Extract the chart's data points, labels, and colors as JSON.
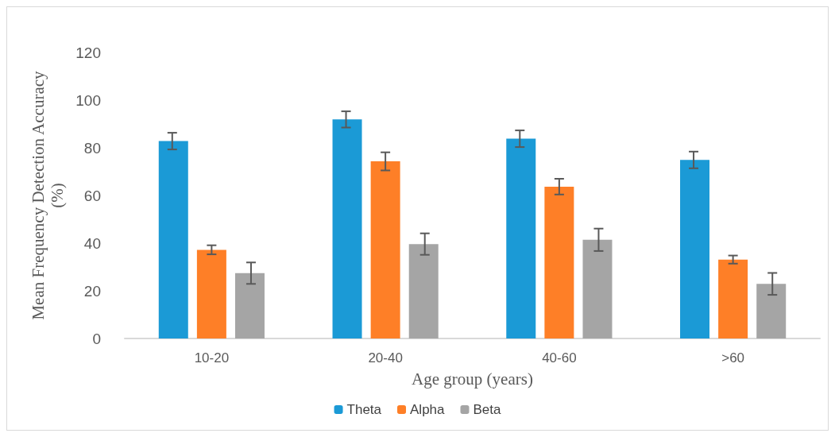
{
  "chart_data": {
    "type": "bar",
    "xlabel": "Age group (years)",
    "ylabel": "Mean Frequency Detection Accuracy\n(%)",
    "categories": [
      "10-20",
      "20-40",
      "40-60",
      ">60"
    ],
    "series": [
      {
        "name": "Theta",
        "color": "#1b9ad6",
        "values": [
          82.8,
          91.9,
          83.8,
          74.9
        ],
        "errors": [
          3.5,
          3.4,
          3.5,
          3.5
        ]
      },
      {
        "name": "Alpha",
        "color": "#fe7f27",
        "values": [
          37.2,
          74.3,
          63.7,
          33.1
        ],
        "errors": [
          1.9,
          3.8,
          3.3,
          1.7
        ]
      },
      {
        "name": "Beta",
        "color": "#a5a5a5",
        "values": [
          27.4,
          39.6,
          41.4,
          22.9
        ],
        "errors": [
          4.5,
          4.5,
          4.7,
          4.6
        ]
      }
    ],
    "ylim": [
      0,
      120
    ],
    "yticks": [
      0,
      20,
      40,
      60,
      80,
      100,
      120
    ],
    "grid": false,
    "legend": "bottom"
  }
}
